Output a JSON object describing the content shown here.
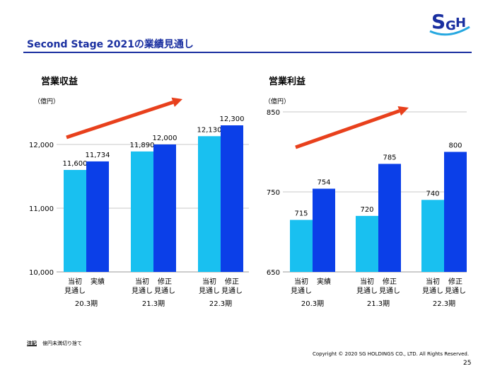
{
  "header": {
    "title": "Second Stage 2021の業績見通し",
    "logo_text": "SGH",
    "logo_colors": {
      "main": "#1a2fa0",
      "accent": "#26a8e0"
    }
  },
  "colors": {
    "initial": "#19c0f0",
    "revised": "#0b3fe8",
    "arrow": "#e8401c",
    "grid": "#c8c8c8",
    "title": "#1a2fa0"
  },
  "chart_data": [
    {
      "type": "bar",
      "title": "営業収益",
      "unit": "（億円）",
      "ylim": [
        10000,
        12300
      ],
      "yticks": [
        {
          "value": 10000,
          "label": "10,000"
        },
        {
          "value": 11000,
          "label": "11,000"
        },
        {
          "value": 12000,
          "label": "12,000"
        }
      ],
      "grid": true,
      "groups": [
        "20.3期",
        "21.3期",
        "22.3期"
      ],
      "bar_labels": [
        [
          "当初\n見通し",
          "実績"
        ],
        [
          "当初\n見通し",
          "修正\n見通し"
        ],
        [
          "当初\n見通し",
          "修正\n見通し"
        ]
      ],
      "series": [
        {
          "values": [
            11600,
            11890,
            12130
          ],
          "labels": [
            "11,600",
            "11,890",
            "12,130"
          ]
        },
        {
          "values": [
            11734,
            12000,
            12300
          ],
          "labels": [
            "11,734",
            "12,000",
            "12,300"
          ]
        }
      ]
    },
    {
      "type": "bar",
      "title": "営業利益",
      "unit": "（億円）",
      "ylim": [
        650,
        850
      ],
      "yticks": [
        {
          "value": 650,
          "label": "650"
        },
        {
          "value": 750,
          "label": "750"
        },
        {
          "value": 850,
          "label": "850"
        }
      ],
      "grid": true,
      "groups": [
        "20.3期",
        "21.3期",
        "22.3期"
      ],
      "bar_labels": [
        [
          "当初\n見通し",
          "実績"
        ],
        [
          "当初\n見通し",
          "修正\n見通し"
        ],
        [
          "当初\n見通し",
          "修正\n見通し"
        ]
      ],
      "series": [
        {
          "values": [
            715,
            720,
            740
          ],
          "labels": [
            "715",
            "720",
            "740"
          ]
        },
        {
          "values": [
            754,
            785,
            800
          ],
          "labels": [
            "754",
            "785",
            "800"
          ]
        }
      ]
    }
  ],
  "footer": {
    "note_label": "注記",
    "note_text": "億円未満切り捨て",
    "copyright": "Copyright © 2020 SG HOLDINGS CO., LTD.  All Rights Reserved.",
    "page": "25"
  }
}
